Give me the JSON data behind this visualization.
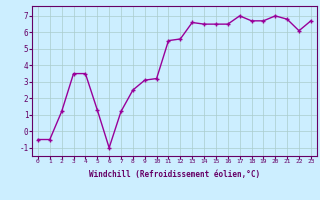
{
  "x": [
    0,
    1,
    2,
    3,
    4,
    5,
    6,
    7,
    8,
    9,
    10,
    11,
    12,
    13,
    14,
    15,
    16,
    17,
    18,
    19,
    20,
    21,
    22,
    23
  ],
  "y": [
    -0.5,
    -0.5,
    1.2,
    3.5,
    3.5,
    1.3,
    -1.0,
    1.2,
    2.5,
    3.1,
    3.2,
    5.5,
    5.6,
    6.6,
    6.5,
    6.5,
    6.5,
    7.0,
    6.7,
    6.7,
    7.0,
    6.8,
    6.1,
    6.7
  ],
  "line_color": "#990099",
  "marker": "+",
  "bg_color": "#cceeff",
  "plot_bg": "#cceeff",
  "grid_color": "#aacccc",
  "xlabel": "Windchill (Refroidissement éolien,°C)",
  "xlabel_color": "#660066",
  "ylabel_ticks": [
    -1,
    0,
    1,
    2,
    3,
    4,
    5,
    6,
    7
  ],
  "xticks": [
    0,
    1,
    2,
    3,
    4,
    5,
    6,
    7,
    8,
    9,
    10,
    11,
    12,
    13,
    14,
    15,
    16,
    17,
    18,
    19,
    20,
    21,
    22,
    23
  ],
  "ylim": [
    -1.5,
    7.6
  ],
  "xlim": [
    -0.5,
    23.5
  ],
  "tick_color": "#660066",
  "axis_color": "#660066",
  "marker_size": 3,
  "line_width": 1.0
}
